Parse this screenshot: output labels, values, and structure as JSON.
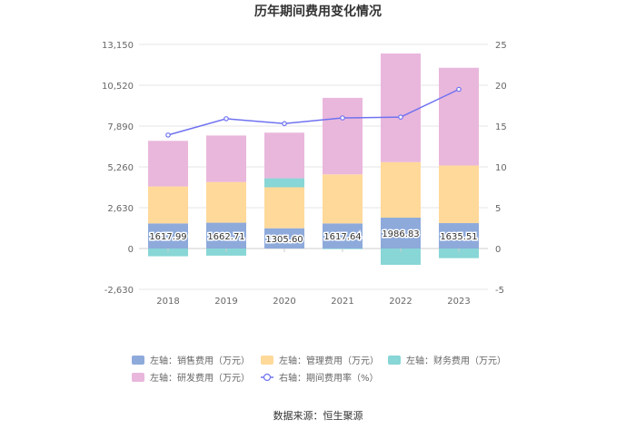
{
  "chart_data": {
    "type": "bar",
    "title": "历年期间费用变化情况",
    "source": "数据来源：恒生聚源",
    "categories": [
      "2018",
      "2019",
      "2020",
      "2021",
      "2022",
      "2023"
    ],
    "y_left": {
      "ticks": [
        "13,150",
        "10,520",
        "7,890",
        "5,260",
        "2,630",
        "0",
        "-2,630"
      ],
      "min": -2630,
      "max": 13150
    },
    "y_right": {
      "ticks": [
        "25",
        "20",
        "15",
        "10",
        "5",
        "0",
        "-5"
      ],
      "min": -5,
      "max": 25
    },
    "stacked": true,
    "series": [
      {
        "name": "左轴：销售费用（万元）",
        "axis": "left",
        "color": "#8eaadb",
        "values": [
          1617.99,
          1662.71,
          1305.6,
          1617.64,
          1986.83,
          1635.51
        ],
        "labels": [
          "1617.99",
          "1662.71",
          "1305.60",
          "1617.64",
          "1986.83",
          "1635.51"
        ]
      },
      {
        "name": "左轴：管理费用（万元）",
        "axis": "left",
        "color": "#ffd99a",
        "values": [
          2380,
          2620,
          2640,
          3160,
          3580,
          3710
        ]
      },
      {
        "name": "左轴：财务费用（万元）",
        "axis": "left",
        "color": "#88d6d6",
        "values": [
          -500,
          -460,
          580,
          -40,
          -1050,
          -620
        ]
      },
      {
        "name": "左轴：研发费用（万元）",
        "axis": "left",
        "color": "#e9b7dc",
        "values": [
          2940,
          3000,
          2940,
          4930,
          7000,
          6300
        ]
      },
      {
        "name": "右轴：期间费用率（%）",
        "axis": "right",
        "type": "line",
        "color": "#6f72f0",
        "values": [
          13.9,
          15.9,
          15.3,
          16.0,
          16.1,
          19.5
        ]
      }
    ],
    "legend_position": "bottom"
  }
}
